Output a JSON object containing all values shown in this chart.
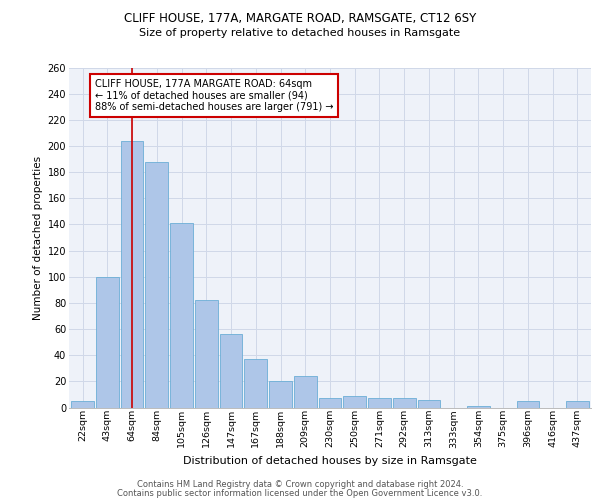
{
  "title1": "CLIFF HOUSE, 177A, MARGATE ROAD, RAMSGATE, CT12 6SY",
  "title2": "Size of property relative to detached houses in Ramsgate",
  "xlabel": "Distribution of detached houses by size in Ramsgate",
  "ylabel": "Number of detached properties",
  "categories": [
    "22sqm",
    "43sqm",
    "64sqm",
    "84sqm",
    "105sqm",
    "126sqm",
    "147sqm",
    "167sqm",
    "188sqm",
    "209sqm",
    "230sqm",
    "250sqm",
    "271sqm",
    "292sqm",
    "313sqm",
    "333sqm",
    "354sqm",
    "375sqm",
    "396sqm",
    "416sqm",
    "437sqm"
  ],
  "values": [
    5,
    100,
    204,
    188,
    141,
    82,
    56,
    37,
    20,
    24,
    7,
    9,
    7,
    7,
    6,
    0,
    1,
    0,
    5,
    0,
    5
  ],
  "bar_color": "#aec6e8",
  "bar_edgecolor": "#6baed6",
  "highlight_index": 2,
  "highlight_line_color": "#cc0000",
  "annotation_text": "CLIFF HOUSE, 177A MARGATE ROAD: 64sqm\n← 11% of detached houses are smaller (94)\n88% of semi-detached houses are larger (791) →",
  "annotation_box_edgecolor": "#cc0000",
  "annotation_box_facecolor": "#ffffff",
  "ylim": [
    0,
    260
  ],
  "yticks": [
    0,
    20,
    40,
    60,
    80,
    100,
    120,
    140,
    160,
    180,
    200,
    220,
    240,
    260
  ],
  "grid_color": "#d0d8e8",
  "background_color": "#eef2f9",
  "footer1": "Contains HM Land Registry data © Crown copyright and database right 2024.",
  "footer2": "Contains public sector information licensed under the Open Government Licence v3.0."
}
